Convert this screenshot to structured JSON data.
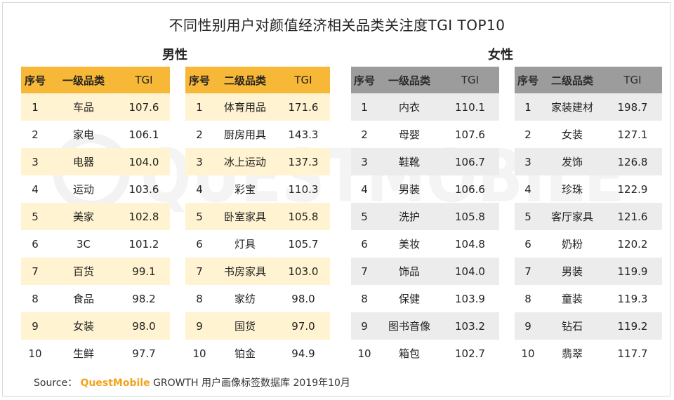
{
  "title": "不同性别用户对颜值经济相关品类关注度TGI TOP10",
  "groups": {
    "male": "男性",
    "female": "女性"
  },
  "headers": {
    "rank": "序号",
    "level1": "一级品类",
    "level2": "二级品类",
    "tgi": "TGI"
  },
  "source": {
    "prefix": "Source：",
    "brand": "QuestMobile",
    "rest": "GROWTH 用户画像标签数据库  2019年10月"
  },
  "watermark": "QUESTMOBILE",
  "colors": {
    "male_header": "#f8b837",
    "male_stripe": "#fff3d1",
    "female_header": "#9c9c9c",
    "female_stripe": "#ececec",
    "brand": "#f2a31b"
  },
  "chart_data": {
    "type": "table",
    "title": "不同性别用户对颜值经济相关品类关注度TGI TOP10",
    "tables": [
      {
        "group": "男性",
        "level": "一级品类",
        "rows": [
          {
            "rank": "1",
            "category": "车品",
            "tgi": "107.6"
          },
          {
            "rank": "2",
            "category": "家电",
            "tgi": "106.1"
          },
          {
            "rank": "3",
            "category": "电器",
            "tgi": "104.0"
          },
          {
            "rank": "4",
            "category": "运动",
            "tgi": "103.6"
          },
          {
            "rank": "5",
            "category": "美家",
            "tgi": "102.8"
          },
          {
            "rank": "6",
            "category": "3C",
            "tgi": "101.2"
          },
          {
            "rank": "7",
            "category": "百货",
            "tgi": "99.1"
          },
          {
            "rank": "8",
            "category": "食品",
            "tgi": "98.2"
          },
          {
            "rank": "9",
            "category": "女装",
            "tgi": "98.0"
          },
          {
            "rank": "10",
            "category": "生鲜",
            "tgi": "97.7"
          }
        ]
      },
      {
        "group": "男性",
        "level": "二级品类",
        "rows": [
          {
            "rank": "1",
            "category": "体育用品",
            "tgi": "171.6"
          },
          {
            "rank": "2",
            "category": "厨房用具",
            "tgi": "143.3"
          },
          {
            "rank": "3",
            "category": "冰上运动",
            "tgi": "137.3"
          },
          {
            "rank": "4",
            "category": "彩宝",
            "tgi": "110.3"
          },
          {
            "rank": "5",
            "category": "卧室家具",
            "tgi": "105.8"
          },
          {
            "rank": "6",
            "category": "灯具",
            "tgi": "105.7"
          },
          {
            "rank": "7",
            "category": "书房家具",
            "tgi": "103.0"
          },
          {
            "rank": "8",
            "category": "家纺",
            "tgi": "98.0"
          },
          {
            "rank": "9",
            "category": "国货",
            "tgi": "97.0"
          },
          {
            "rank": "10",
            "category": "铂金",
            "tgi": "94.9"
          }
        ]
      },
      {
        "group": "女性",
        "level": "一级品类",
        "rows": [
          {
            "rank": "1",
            "category": "内衣",
            "tgi": "110.1"
          },
          {
            "rank": "2",
            "category": "母婴",
            "tgi": "107.6"
          },
          {
            "rank": "3",
            "category": "鞋靴",
            "tgi": "106.7"
          },
          {
            "rank": "4",
            "category": "男装",
            "tgi": "106.6"
          },
          {
            "rank": "5",
            "category": "洗护",
            "tgi": "105.8"
          },
          {
            "rank": "6",
            "category": "美妆",
            "tgi": "104.8"
          },
          {
            "rank": "7",
            "category": "饰品",
            "tgi": "104.0"
          },
          {
            "rank": "8",
            "category": "保健",
            "tgi": "103.9"
          },
          {
            "rank": "9",
            "category": "图书音像",
            "tgi": "103.2"
          },
          {
            "rank": "10",
            "category": "箱包",
            "tgi": "102.7"
          }
        ]
      },
      {
        "group": "女性",
        "level": "二级品类",
        "rows": [
          {
            "rank": "1",
            "category": "家装建材",
            "tgi": "198.7"
          },
          {
            "rank": "2",
            "category": "女装",
            "tgi": "127.1"
          },
          {
            "rank": "3",
            "category": "发饰",
            "tgi": "126.8"
          },
          {
            "rank": "4",
            "category": "珍珠",
            "tgi": "122.9"
          },
          {
            "rank": "5",
            "category": "客厅家具",
            "tgi": "121.6"
          },
          {
            "rank": "6",
            "category": "奶粉",
            "tgi": "120.2"
          },
          {
            "rank": "7",
            "category": "男装",
            "tgi": "119.9"
          },
          {
            "rank": "8",
            "category": "童装",
            "tgi": "119.3"
          },
          {
            "rank": "9",
            "category": "钻石",
            "tgi": "119.2"
          },
          {
            "rank": "10",
            "category": "翡翠",
            "tgi": "117.7"
          }
        ]
      }
    ]
  }
}
